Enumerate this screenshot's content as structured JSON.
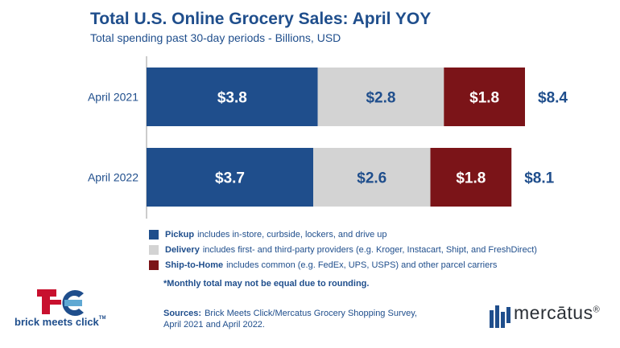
{
  "title": "Total U.S. Online Grocery Sales: April YOY",
  "subtitle": "Total spending past 30-day periods - Billions, USD",
  "chart_data": {
    "type": "bar",
    "orientation": "horizontal",
    "stacked": true,
    "categories": [
      "April  2021",
      "April 2022"
    ],
    "series": [
      {
        "name": "Pickup",
        "values": [
          3.8,
          3.7
        ],
        "labels": [
          "$3.8",
          "$3.7"
        ],
        "color": "#1f4e8c",
        "label_color": "#ffffff"
      },
      {
        "name": "Delivery",
        "values": [
          2.8,
          2.6
        ],
        "labels": [
          "$2.8",
          "$2.6"
        ],
        "color": "#d3d3d3",
        "label_color": "#1f4e8c"
      },
      {
        "name": "Ship-to-Home",
        "values": [
          1.8,
          1.8
        ],
        "labels": [
          "$1.8",
          "$1.8"
        ],
        "color": "#7b1418",
        "label_color": "#ffffff"
      }
    ],
    "totals": [
      "$8.4",
      "$8.1"
    ],
    "xlim": [
      0,
      8.4
    ],
    "grid": false
  },
  "legend": [
    {
      "name": "Pickup",
      "desc": "includes in-store, curbside, lockers, and drive up",
      "color": "#1f4e8c"
    },
    {
      "name": "Delivery",
      "desc": "includes first- and third-party providers (e.g. Kroger, Instacart, Shipt, and FreshDirect)",
      "color": "#d3d3d3"
    },
    {
      "name": "Ship-to-Home",
      "desc": "includes common (e.g. FedEx, UPS, USPS) and other parcel carriers",
      "color": "#7b1418"
    }
  ],
  "footnote": "*Monthly total may not be equal due to rounding.",
  "sources": {
    "label": "Sources:",
    "line1": "Brick Meets Click/Mercatus Grocery Shopping Survey,",
    "line2": "April 2021 and April 2022."
  },
  "logos": {
    "left_text": "brick meets click",
    "left_tm": "TM",
    "right_text": "mercātus",
    "right_mark": "®"
  }
}
